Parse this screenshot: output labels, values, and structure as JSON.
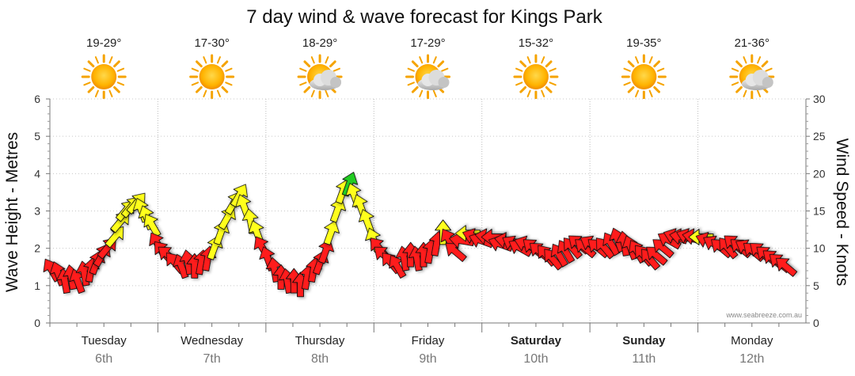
{
  "chart_data": {
    "type": "line",
    "title": "7 day wind & wave forecast for Kings Park",
    "ylabel_left": "Wave Height - Metres",
    "ylabel_right": "Wind Speed - Knots",
    "ylim_left": [
      0,
      6
    ],
    "ylim_right": [
      0,
      30
    ],
    "yticks_left": [
      "0",
      "1",
      "2",
      "3",
      "4",
      "5",
      "6"
    ],
    "yticks_right": [
      "0",
      "5",
      "10",
      "15",
      "20",
      "25",
      "30"
    ],
    "credit": "www.seabreeze.com.au",
    "days": [
      {
        "name": "Tuesday",
        "date": "6th",
        "bold": false,
        "temp": "19-29°",
        "weather": "sunny"
      },
      {
        "name": "Wednesday",
        "date": "7th",
        "bold": false,
        "temp": "17-30°",
        "weather": "sunny"
      },
      {
        "name": "Thursday",
        "date": "8th",
        "bold": false,
        "temp": "18-29°",
        "weather": "partly-cloudy"
      },
      {
        "name": "Friday",
        "date": "9th",
        "bold": false,
        "temp": "17-29°",
        "weather": "partly-cloudy"
      },
      {
        "name": "Saturday",
        "date": "10th",
        "bold": true,
        "temp": "15-32°",
        "weather": "sunny"
      },
      {
        "name": "Sunday",
        "date": "11th",
        "bold": true,
        "temp": "19-35°",
        "weather": "sunny"
      },
      {
        "name": "Monday",
        "date": "12th",
        "bold": false,
        "temp": "21-36°",
        "weather": "partly-cloudy"
      }
    ],
    "legend_colors": {
      "light": "#ff1a1a",
      "moderate": "#ffff1a",
      "strong": "#22cc22",
      "outline": "#111111"
    },
    "series": [
      {
        "name": "Wind Speed (knots)",
        "description": "arrow glyphs; position = wind speed, rotation = direction (degrees toward which arrow points, 0 = up, 90 = right)",
        "points": [
          {
            "day": 0.02,
            "knots": 7,
            "dir": -30,
            "color": "red"
          },
          {
            "day": 0.08,
            "knots": 6.5,
            "dir": -20,
            "color": "red"
          },
          {
            "day": 0.14,
            "knots": 5.5,
            "dir": -10,
            "color": "red"
          },
          {
            "day": 0.2,
            "knots": 6,
            "dir": -10,
            "color": "red"
          },
          {
            "day": 0.26,
            "knots": 5.5,
            "dir": -20,
            "color": "red"
          },
          {
            "day": 0.32,
            "knots": 6.5,
            "dir": -10,
            "color": "red"
          },
          {
            "day": 0.38,
            "knots": 7,
            "dir": 10,
            "color": "red"
          },
          {
            "day": 0.43,
            "knots": 8,
            "dir": 20,
            "color": "red"
          },
          {
            "day": 0.48,
            "knots": 9,
            "dir": 30,
            "color": "red"
          },
          {
            "day": 0.53,
            "knots": 10,
            "dir": 40,
            "color": "red"
          },
          {
            "day": 0.6,
            "knots": 11.5,
            "dir": 40,
            "color": "yellow"
          },
          {
            "day": 0.65,
            "knots": 13.5,
            "dir": 40,
            "color": "yellow"
          },
          {
            "day": 0.7,
            "knots": 15,
            "dir": 40,
            "color": "yellow"
          },
          {
            "day": 0.75,
            "knots": 15.5,
            "dir": 40,
            "color": "yellow"
          },
          {
            "day": 0.8,
            "knots": 16,
            "dir": 40,
            "color": "yellow"
          },
          {
            "day": 0.85,
            "knots": 15,
            "dir": -20,
            "color": "yellow"
          },
          {
            "day": 0.9,
            "knots": 14,
            "dir": -20,
            "color": "yellow"
          },
          {
            "day": 0.95,
            "knots": 13,
            "dir": -30,
            "color": "yellow"
          },
          {
            "day": 1.0,
            "knots": 10.5,
            "dir": -30,
            "color": "red"
          },
          {
            "day": 1.05,
            "knots": 9.5,
            "dir": -40,
            "color": "red"
          },
          {
            "day": 1.1,
            "knots": 9,
            "dir": -50,
            "color": "red"
          },
          {
            "day": 1.16,
            "knots": 8,
            "dir": -40,
            "color": "red"
          },
          {
            "day": 1.22,
            "knots": 7.5,
            "dir": -20,
            "color": "red"
          },
          {
            "day": 1.28,
            "knots": 8,
            "dir": -10,
            "color": "red"
          },
          {
            "day": 1.34,
            "knots": 7.5,
            "dir": 0,
            "color": "red"
          },
          {
            "day": 1.4,
            "knots": 8,
            "dir": 10,
            "color": "red"
          },
          {
            "day": 1.46,
            "knots": 8.5,
            "dir": 10,
            "color": "red"
          },
          {
            "day": 1.52,
            "knots": 10,
            "dir": 20,
            "color": "yellow"
          },
          {
            "day": 1.58,
            "knots": 12,
            "dir": 20,
            "color": "yellow"
          },
          {
            "day": 1.64,
            "knots": 14,
            "dir": 30,
            "color": "yellow"
          },
          {
            "day": 1.7,
            "knots": 16,
            "dir": 30,
            "color": "yellow"
          },
          {
            "day": 1.75,
            "knots": 17,
            "dir": 30,
            "color": "yellow"
          },
          {
            "day": 1.8,
            "knots": 15.5,
            "dir": -20,
            "color": "yellow"
          },
          {
            "day": 1.86,
            "knots": 13.5,
            "dir": -10,
            "color": "yellow"
          },
          {
            "day": 1.92,
            "knots": 12,
            "dir": -20,
            "color": "yellow"
          },
          {
            "day": 1.97,
            "knots": 10,
            "dir": -30,
            "color": "red"
          },
          {
            "day": 2.02,
            "knots": 8.5,
            "dir": -20,
            "color": "red"
          },
          {
            "day": 2.08,
            "knots": 7,
            "dir": -10,
            "color": "red"
          },
          {
            "day": 2.14,
            "knots": 6,
            "dir": 0,
            "color": "red"
          },
          {
            "day": 2.2,
            "knots": 5.5,
            "dir": -10,
            "color": "red"
          },
          {
            "day": 2.26,
            "knots": 5.5,
            "dir": 0,
            "color": "red"
          },
          {
            "day": 2.32,
            "knots": 5,
            "dir": 0,
            "color": "red"
          },
          {
            "day": 2.38,
            "knots": 6,
            "dir": 10,
            "color": "red"
          },
          {
            "day": 2.44,
            "knots": 7,
            "dir": 10,
            "color": "red"
          },
          {
            "day": 2.5,
            "knots": 8,
            "dir": 20,
            "color": "red"
          },
          {
            "day": 2.55,
            "knots": 9.5,
            "dir": 20,
            "color": "red"
          },
          {
            "day": 2.6,
            "knots": 12,
            "dir": 20,
            "color": "yellow"
          },
          {
            "day": 2.66,
            "knots": 15,
            "dir": 20,
            "color": "yellow"
          },
          {
            "day": 2.71,
            "knots": 17.5,
            "dir": 20,
            "color": "yellow"
          },
          {
            "day": 2.77,
            "knots": 18.5,
            "dir": 20,
            "color": "green"
          },
          {
            "day": 2.82,
            "knots": 17,
            "dir": -20,
            "color": "yellow"
          },
          {
            "day": 2.88,
            "knots": 15.5,
            "dir": -20,
            "color": "yellow"
          },
          {
            "day": 2.94,
            "knots": 13.5,
            "dir": -20,
            "color": "yellow"
          },
          {
            "day": 3.0,
            "knots": 11,
            "dir": -20,
            "color": "yellow"
          },
          {
            "day": 3.05,
            "knots": 10,
            "dir": -40,
            "color": "red"
          },
          {
            "day": 3.1,
            "knots": 9,
            "dir": -50,
            "color": "red"
          },
          {
            "day": 3.16,
            "knots": 8,
            "dir": -40,
            "color": "red"
          },
          {
            "day": 3.22,
            "knots": 7.5,
            "dir": -30,
            "color": "red"
          },
          {
            "day": 3.28,
            "knots": 8.5,
            "dir": -10,
            "color": "red"
          },
          {
            "day": 3.34,
            "knots": 9,
            "dir": 0,
            "color": "red"
          },
          {
            "day": 3.4,
            "knots": 8.5,
            "dir": -10,
            "color": "red"
          },
          {
            "day": 3.46,
            "knots": 9,
            "dir": 0,
            "color": "red"
          },
          {
            "day": 3.52,
            "knots": 9.5,
            "dir": 10,
            "color": "red"
          },
          {
            "day": 3.58,
            "knots": 10.5,
            "dir": 10,
            "color": "red"
          },
          {
            "day": 3.64,
            "knots": 12,
            "dir": 0,
            "color": "yellow"
          },
          {
            "day": 3.7,
            "knots": 11,
            "dir": -30,
            "color": "red"
          },
          {
            "day": 3.76,
            "knots": 9.5,
            "dir": -50,
            "color": "red"
          },
          {
            "day": 3.82,
            "knots": 11,
            "dir": -80,
            "color": "red"
          },
          {
            "day": 3.88,
            "knots": 12,
            "dir": -90,
            "color": "yellow"
          },
          {
            "day": 3.94,
            "knots": 11.5,
            "dir": -70,
            "color": "red"
          },
          {
            "day": 4.0,
            "knots": 11,
            "dir": -70,
            "color": "red"
          },
          {
            "day": 4.06,
            "knots": 11.5,
            "dir": -80,
            "color": "red"
          },
          {
            "day": 4.12,
            "knots": 11.5,
            "dir": -90,
            "color": "red"
          },
          {
            "day": 4.18,
            "knots": 10.5,
            "dir": -70,
            "color": "red"
          },
          {
            "day": 4.24,
            "knots": 11,
            "dir": -80,
            "color": "red"
          },
          {
            "day": 4.3,
            "knots": 10.5,
            "dir": -60,
            "color": "red"
          },
          {
            "day": 4.36,
            "knots": 10,
            "dir": -60,
            "color": "red"
          },
          {
            "day": 4.42,
            "knots": 10.5,
            "dir": -70,
            "color": "red"
          },
          {
            "day": 4.48,
            "knots": 10,
            "dir": -50,
            "color": "red"
          },
          {
            "day": 4.54,
            "knots": 9.5,
            "dir": -50,
            "color": "red"
          },
          {
            "day": 4.6,
            "knots": 9,
            "dir": -40,
            "color": "red"
          },
          {
            "day": 4.66,
            "knots": 8.5,
            "dir": -40,
            "color": "red"
          },
          {
            "day": 4.72,
            "knots": 9,
            "dir": -30,
            "color": "red"
          },
          {
            "day": 4.78,
            "knots": 9.5,
            "dir": -30,
            "color": "red"
          },
          {
            "day": 4.84,
            "knots": 10,
            "dir": -40,
            "color": "red"
          },
          {
            "day": 4.9,
            "knots": 10.5,
            "dir": -50,
            "color": "red"
          },
          {
            "day": 4.96,
            "knots": 10,
            "dir": -50,
            "color": "red"
          },
          {
            "day": 5.02,
            "knots": 10.5,
            "dir": -60,
            "color": "red"
          },
          {
            "day": 5.08,
            "knots": 10,
            "dir": -50,
            "color": "red"
          },
          {
            "day": 5.14,
            "knots": 10,
            "dir": -40,
            "color": "red"
          },
          {
            "day": 5.2,
            "knots": 10.5,
            "dir": -30,
            "color": "red"
          },
          {
            "day": 5.26,
            "knots": 11,
            "dir": -20,
            "color": "red"
          },
          {
            "day": 5.32,
            "knots": 10.5,
            "dir": -10,
            "color": "red"
          },
          {
            "day": 5.38,
            "knots": 10,
            "dir": -20,
            "color": "red"
          },
          {
            "day": 5.44,
            "knots": 9.5,
            "dir": -30,
            "color": "red"
          },
          {
            "day": 5.5,
            "knots": 9,
            "dir": -40,
            "color": "red"
          },
          {
            "day": 5.56,
            "knots": 8.5,
            "dir": -40,
            "color": "red"
          },
          {
            "day": 5.62,
            "knots": 9,
            "dir": -50,
            "color": "red"
          },
          {
            "day": 5.68,
            "knots": 10,
            "dir": -50,
            "color": "red"
          },
          {
            "day": 5.74,
            "knots": 11,
            "dir": -60,
            "color": "red"
          },
          {
            "day": 5.8,
            "knots": 11.5,
            "dir": -70,
            "color": "red"
          },
          {
            "day": 5.86,
            "knots": 11.5,
            "dir": -80,
            "color": "red"
          },
          {
            "day": 5.92,
            "knots": 11.5,
            "dir": -70,
            "color": "red"
          },
          {
            "day": 5.98,
            "knots": 11.5,
            "dir": -80,
            "color": "red"
          },
          {
            "day": 6.04,
            "knots": 11.5,
            "dir": -90,
            "color": "yellow"
          },
          {
            "day": 6.1,
            "knots": 11,
            "dir": -70,
            "color": "red"
          },
          {
            "day": 6.16,
            "knots": 10.5,
            "dir": -60,
            "color": "red"
          },
          {
            "day": 6.22,
            "knots": 10,
            "dir": -50,
            "color": "red"
          },
          {
            "day": 6.28,
            "knots": 10,
            "dir": -40,
            "color": "red"
          },
          {
            "day": 6.34,
            "knots": 10.5,
            "dir": -50,
            "color": "red"
          },
          {
            "day": 6.4,
            "knots": 10,
            "dir": -50,
            "color": "red"
          },
          {
            "day": 6.46,
            "knots": 10,
            "dir": -60,
            "color": "red"
          },
          {
            "day": 6.52,
            "knots": 9.5,
            "dir": -50,
            "color": "red"
          },
          {
            "day": 6.58,
            "knots": 9.5,
            "dir": -50,
            "color": "red"
          },
          {
            "day": 6.64,
            "knots": 9,
            "dir": -50,
            "color": "red"
          },
          {
            "day": 6.7,
            "knots": 8.5,
            "dir": -50,
            "color": "red"
          },
          {
            "day": 6.76,
            "knots": 8,
            "dir": -50,
            "color": "red"
          },
          {
            "day": 6.82,
            "knots": 7.5,
            "dir": -50,
            "color": "red"
          }
        ]
      }
    ]
  }
}
